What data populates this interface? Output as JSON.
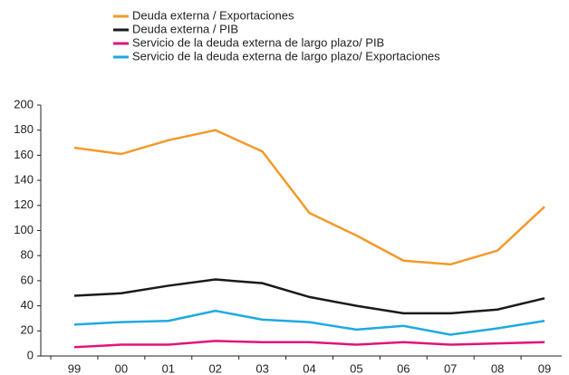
{
  "chart_data": {
    "type": "line",
    "categories": [
      "99",
      "00",
      "01",
      "02",
      "03",
      "04",
      "05",
      "06",
      "07",
      "08",
      "09"
    ],
    "series": [
      {
        "name": "Deuda externa / Exportaciones",
        "color": "#f39a2b",
        "values": [
          166,
          161,
          172,
          180,
          163,
          114,
          96,
          76,
          73,
          84,
          119
        ]
      },
      {
        "name": "Deuda externa / PIB",
        "color": "#1a1a1a",
        "values": [
          48,
          50,
          56,
          61,
          58,
          47,
          40,
          34,
          34,
          37,
          46
        ]
      },
      {
        "name": "Servicio de la deuda externa de largo plazo/ PIB",
        "color": "#e0147c",
        "values": [
          7,
          9,
          9,
          12,
          11,
          11,
          9,
          11,
          9,
          10,
          11
        ]
      },
      {
        "name": "Servicio de la deuda externa de largo plazo/ Exportaciones",
        "color": "#1fa9e1",
        "values": [
          25,
          27,
          28,
          36,
          29,
          27,
          21,
          24,
          17,
          22,
          28
        ]
      }
    ],
    "ylim": [
      0,
      200
    ],
    "yticks": [
      0,
      20,
      40,
      60,
      80,
      100,
      120,
      140,
      160,
      180,
      200
    ],
    "grid": false
  }
}
